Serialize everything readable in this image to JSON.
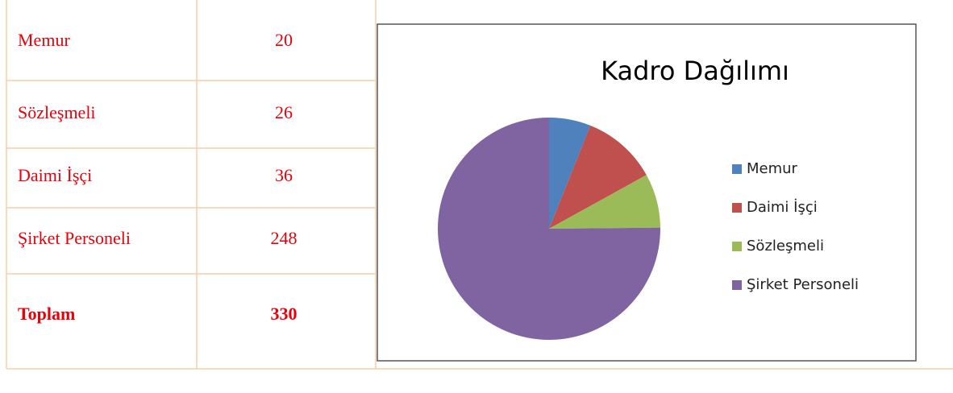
{
  "table": {
    "rows": [
      [
        "Memur",
        "20"
      ],
      [
        "Sözleşmeli",
        "26"
      ],
      [
        "Daimi İşçi",
        "36"
      ],
      [
        "Şirket Personeli",
        "248"
      ],
      [
        "Toplam",
        "330"
      ]
    ]
  },
  "chart_data": {
    "type": "pie",
    "title": "Kadro Dağılımı",
    "categories": [
      "Memur",
      "Daimi İşçi",
      "Sözleşmeli",
      "Şirket Personeli"
    ],
    "values": [
      20,
      36,
      26,
      248
    ],
    "colors": [
      "#4f81bd",
      "#c0504d",
      "#9bbb59",
      "#8064a2"
    ],
    "legend": "right"
  }
}
